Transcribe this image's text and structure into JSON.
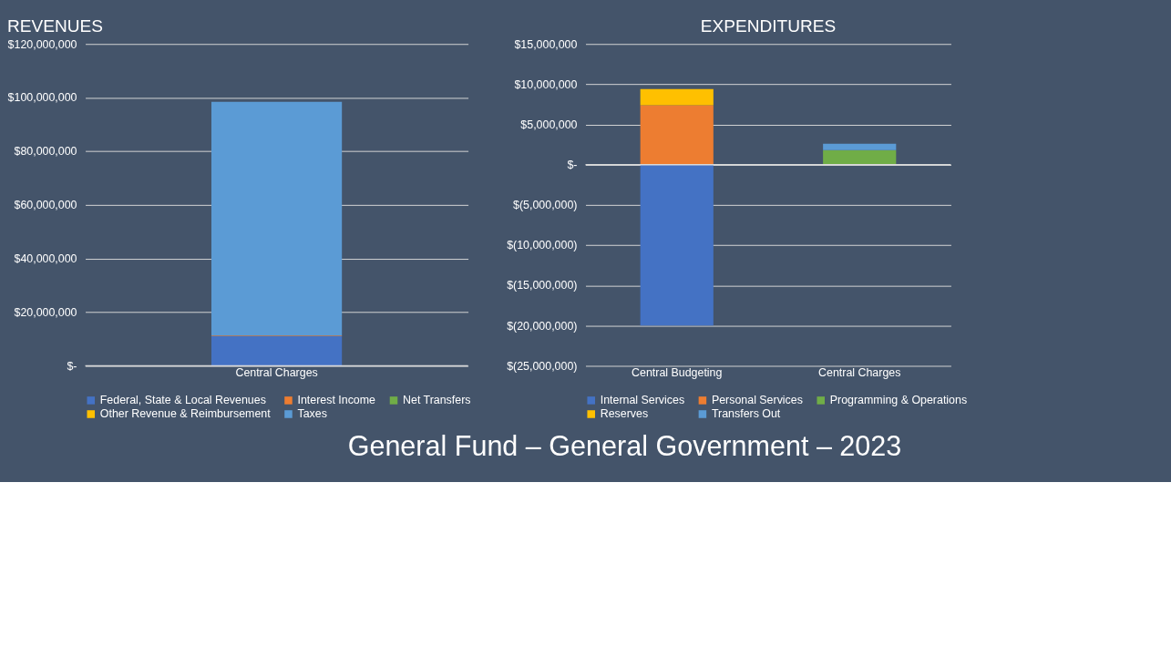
{
  "chart_data": [
    {
      "type": "bar",
      "title": "REVENUES",
      "stacked": true,
      "categories": [
        "Central Charges"
      ],
      "series": [
        {
          "name": "Federal, State & Local Revenues",
          "color": "#4472c4",
          "values": [
            11000000
          ]
        },
        {
          "name": "Interest Income",
          "color": "#ed7d31",
          "values": [
            300000
          ]
        },
        {
          "name": "Net Transfers",
          "color": "#70ad47",
          "values": [
            null
          ]
        },
        {
          "name": "Other Revenue & Reimbursement",
          "color": "#ffc000",
          "values": [
            null
          ]
        },
        {
          "name": "Taxes",
          "color": "#5b9bd5",
          "values": [
            87100000
          ]
        }
      ],
      "ylim": [
        0,
        120000000
      ],
      "yticks": [
        {
          "value": 0,
          "label": "$-"
        },
        {
          "value": 20000000,
          "label": "$20,000,000"
        },
        {
          "value": 40000000,
          "label": "$40,000,000"
        },
        {
          "value": 60000000,
          "label": "$60,000,000"
        },
        {
          "value": 80000000,
          "label": "$80,000,000"
        },
        {
          "value": 100000000,
          "label": "$100,000,000"
        },
        {
          "value": 120000000,
          "label": "$120,000,000"
        }
      ],
      "grid": "y",
      "legend": "bottom"
    },
    {
      "type": "bar",
      "title": "EXPENDITURES",
      "stacked": true,
      "categories": [
        "Central Budgeting",
        "Central Charges"
      ],
      "series": [
        {
          "name": "Internal Services",
          "color": "#4472c4",
          "values": [
            -20000000,
            null
          ]
        },
        {
          "name": "Personal Services",
          "color": "#ed7d31",
          "values": [
            7400000,
            null
          ]
        },
        {
          "name": "Programming & Operations",
          "color": "#70ad47",
          "values": [
            null,
            1800000
          ]
        },
        {
          "name": "Reserves",
          "color": "#ffc000",
          "values": [
            2000000,
            null
          ]
        },
        {
          "name": "Transfers Out",
          "color": "#5b9bd5",
          "values": [
            null,
            800000
          ]
        }
      ],
      "ylim": [
        -25000000,
        15000000
      ],
      "yticks": [
        {
          "value": -25000000,
          "label": "$(25,000,000)"
        },
        {
          "value": -20000000,
          "label": "$(20,000,000)"
        },
        {
          "value": -15000000,
          "label": "$(15,000,000)"
        },
        {
          "value": -10000000,
          "label": "$(10,000,000)"
        },
        {
          "value": -5000000,
          "label": "$(5,000,000)"
        },
        {
          "value": 0,
          "label": "$-"
        },
        {
          "value": 5000000,
          "label": "$5,000,000"
        },
        {
          "value": 10000000,
          "label": "$10,000,000"
        },
        {
          "value": 15000000,
          "label": "$15,000,000"
        }
      ],
      "grid": "y",
      "legend": "bottom",
      "annotations": [
        "General Fund – General Government – 2023"
      ]
    }
  ]
}
